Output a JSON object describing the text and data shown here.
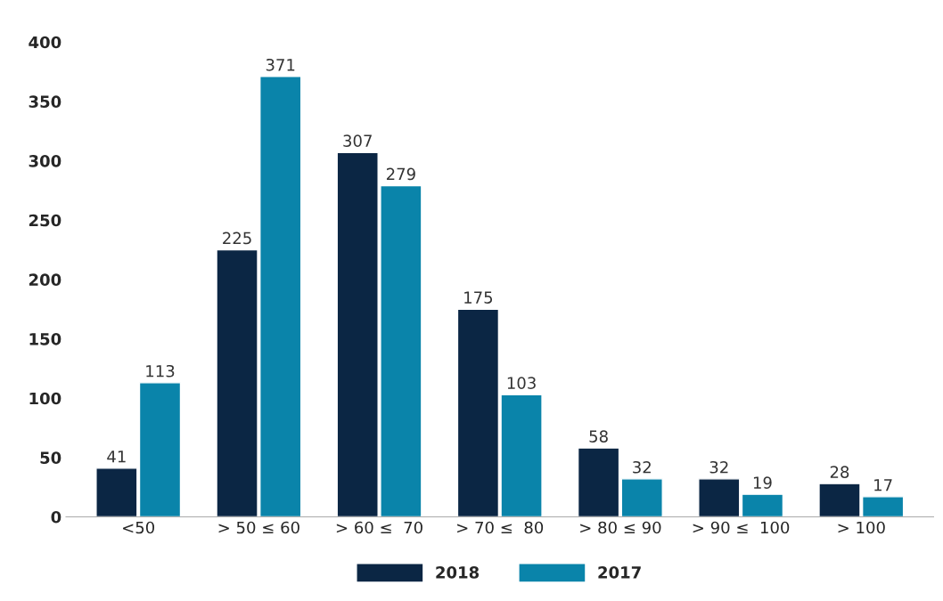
{
  "chart_data": {
    "type": "bar",
    "categories": [
      "<50",
      "> 50 ≤ 60",
      "> 60 ≤  70",
      "> 70 ≤  80",
      "> 80 ≤ 90",
      "> 90 ≤  100",
      "> 100"
    ],
    "series": [
      {
        "name": "2018",
        "color": "#0b2644",
        "values": [
          41,
          225,
          307,
          175,
          58,
          32,
          28
        ]
      },
      {
        "name": "2017",
        "color": "#0a84aa",
        "values": [
          113,
          371,
          279,
          103,
          32,
          19,
          17
        ]
      }
    ],
    "ylim": [
      0,
      400
    ],
    "yticks": [
      0,
      50,
      100,
      150,
      200,
      250,
      300,
      350,
      400
    ],
    "grid": false,
    "legend": "bottom",
    "data_labels": true
  }
}
